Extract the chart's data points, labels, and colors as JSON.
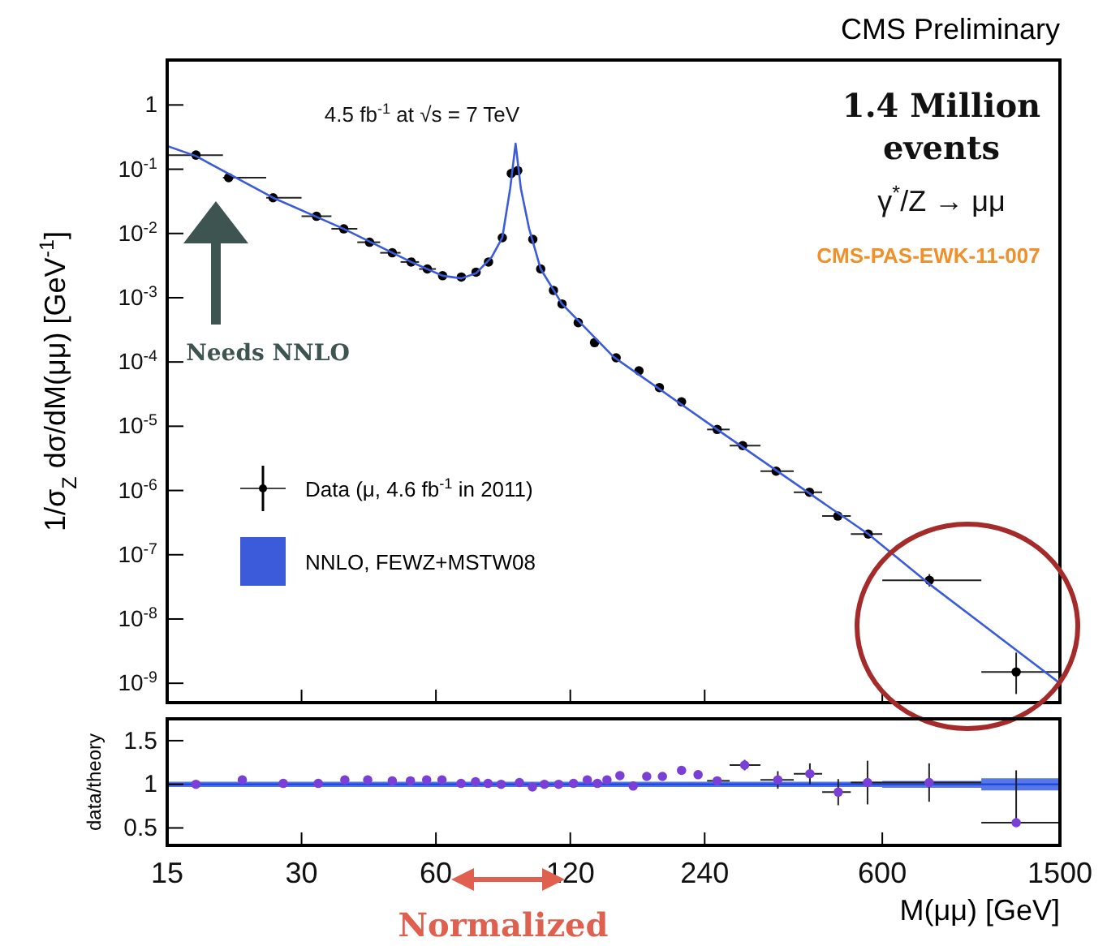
{
  "chart_data": [
    {
      "type": "line",
      "title": "CMS Preliminary",
      "ylabel": "1/σ$_{Z}$ dσ/dM(μμ) [GeV$^{-1}$]",
      "annotations": [
        "4.5 fb$^{-1}$ at √s = 7 TeV",
        "1.4 Million events",
        "γ$^{*}$/Z → μμ",
        "CMS-PAS-EWK-11-007",
        "Needs NNLO"
      ],
      "log": "xy",
      "xlim": [
        15,
        1500
      ],
      "xticks": [
        15,
        30,
        60,
        120,
        240,
        600,
        1500
      ],
      "ylim": [
        5e-10,
        5
      ],
      "yticks": [
        {
          "value": 1e-09,
          "label": "10$^{-9}$"
        },
        {
          "value": 1e-08,
          "label": "10$^{-8}$"
        },
        {
          "value": 1e-07,
          "label": "10$^{-7}$"
        },
        {
          "value": 1e-06,
          "label": "10$^{-6}$"
        },
        {
          "value": 1e-05,
          "label": "10$^{-5}$"
        },
        {
          "value": 0.0001,
          "label": "10$^{-4}$"
        },
        {
          "value": 0.001,
          "label": "10$^{-3}$"
        },
        {
          "value": 0.01,
          "label": "10$^{-2}$"
        },
        {
          "value": 0.1,
          "label": "10$^{-1}$"
        },
        1
      ],
      "tick_labels": "y",
      "legend": "bottom left",
      "series": [
        {
          "name": "Data (μ, 4.6 fb$^{-1}$ in 2011)",
          "type": "scatter",
          "marker": "circle",
          "color": "#000000",
          "x": [
            17.4,
            20.6,
            25.9,
            32.4,
            37.3,
            42.6,
            47.9,
            52.8,
            57.4,
            62.1,
            68.4,
            73.8,
            78.7,
            84.5,
            88.5,
            91.5,
            98.9,
            103,
            110,
            115,
            125,
            136,
            152,
            171,
            190,
            213,
            256,
            292,
            347,
            412,
            477,
            558,
            765,
            1197
          ],
          "values": [
            0.166,
            0.074,
            0.036,
            0.0185,
            0.0118,
            0.0073,
            0.005,
            0.0036,
            0.0028,
            0.0022,
            0.0021,
            0.0025,
            0.0036,
            0.0086,
            0.086,
            0.095,
            0.0081,
            0.0028,
            0.0013,
            0.0008,
            0.00041,
            0.0002,
            0.000116,
            7.3e-05,
            4e-05,
            2.4e-05,
            8.9e-06,
            5e-06,
            2e-06,
            9.4e-07,
            4e-07,
            2.1e-07,
            4e-08,
            1.5e-09
          ],
          "xerrors": [
            [
              15,
              20
            ],
            [
              20,
              25
            ],
            [
              25,
              30
            ],
            [
              30,
              35
            ],
            [
              35,
              40
            ],
            [
              40,
              45
            ],
            [
              45,
              50
            ],
            [
              50,
              55
            ],
            [
              55,
              60
            ],
            null,
            null,
            null,
            null,
            null,
            null,
            null,
            null,
            null,
            null,
            null,
            null,
            null,
            null,
            null,
            null,
            null,
            [
              243,
              273
            ],
            [
              273,
              320
            ],
            [
              320,
              380
            ],
            [
              380,
              440
            ],
            [
              440,
              510
            ],
            [
              510,
              600
            ],
            [
              600,
              1000
            ],
            [
              1000,
              1500
            ]
          ],
          "errors": [
            null,
            null,
            null,
            null,
            null,
            null,
            null,
            null,
            null,
            null,
            null,
            null,
            null,
            null,
            null,
            null,
            null,
            null,
            null,
            null,
            null,
            null,
            null,
            null,
            null,
            null,
            null,
            null,
            null,
            null,
            null,
            null,
            [
              3.2e-08,
              5e-08
            ],
            [
              6.8e-10,
              3e-09
            ]
          ]
        },
        {
          "name": "NNLO, FEWZ+MSTW08",
          "color": "#3b5bdb",
          "x": [
            15,
            17.4,
            25.9,
            37.3,
            52.8,
            62.1,
            68.4,
            73.8,
            80,
            84.5,
            88,
            90.5,
            93,
            97,
            103,
            115,
            150,
            256,
            558,
            765,
            1500
          ],
          "values": [
            0.23,
            0.16,
            0.036,
            0.0118,
            0.0036,
            0.0022,
            0.002,
            0.0024,
            0.0043,
            0.0086,
            0.05,
            0.25,
            0.05,
            0.012,
            0.0028,
            0.0008,
            0.00012,
            8.9e-06,
            2.1e-07,
            3.5e-08,
            1e-09
          ]
        }
      ]
    },
    {
      "type": "scatter",
      "xlabel": "M(μμ)  [GeV]",
      "ylabel": "data/theory",
      "annotations": [
        "Normalized"
      ],
      "log": "x",
      "xlim": [
        15,
        1500
      ],
      "xticks": [
        15,
        30,
        60,
        120,
        240,
        600,
        1500
      ],
      "ylim": [
        0.3,
        1.75
      ],
      "yticks": [
        0.5,
        1,
        1.5
      ],
      "series": [
        {
          "type": "line",
          "color": "#1f4ae0",
          "x": [
            15,
            600,
            1000,
            1500
          ],
          "values": [
            1,
            1,
            1,
            1
          ],
          "lower": [
            0.97,
            0.96,
            0.93,
            0.9
          ],
          "upper": [
            1.03,
            1.04,
            1.07,
            1.1
          ]
        },
        {
          "marker": "circle",
          "color": "#7a3fd6",
          "x": [
            17.4,
            22.1,
            27.3,
            32.7,
            37.5,
            42.2,
            47.9,
            52.6,
            57.2,
            61.9,
            68.3,
            73.6,
            78.5,
            84,
            92.3,
            98.7,
            105,
            113,
            122,
            131,
            138,
            145,
            155,
            166,
            178,
            193,
            213,
            232,
            256,
            295,
            350,
            413,
            478,
            556,
            764,
            1197
          ],
          "values": [
            1,
            1.05,
            1.01,
            1.01,
            1.05,
            1.05,
            1.04,
            1.04,
            1.05,
            1.05,
            1.01,
            1.03,
            1.01,
            1,
            1.02,
            0.97,
            1,
            1,
            1.01,
            1.05,
            1.01,
            1.05,
            1.1,
            0.98,
            1.09,
            1.09,
            1.16,
            1.11,
            1.04,
            1.22,
            1.05,
            1.12,
            0.91,
            1.02,
            1.02,
            0.56
          ],
          "errors": [
            null,
            null,
            null,
            null,
            null,
            null,
            null,
            null,
            null,
            null,
            null,
            null,
            null,
            null,
            null,
            null,
            null,
            null,
            null,
            null,
            null,
            null,
            null,
            null,
            null,
            null,
            null,
            null,
            null,
            0.06,
            0.1,
            0.12,
            0.15,
            0.25,
            0.22,
            [
              0.56,
              1.16
            ]
          ],
          "xerrors": [
            null,
            null,
            null,
            null,
            null,
            null,
            null,
            null,
            null,
            null,
            null,
            null,
            null,
            null,
            null,
            null,
            null,
            null,
            null,
            null,
            null,
            null,
            null,
            null,
            null,
            null,
            null,
            null,
            [
              243,
              273
            ],
            [
              273,
              320
            ],
            [
              320,
              380
            ],
            [
              380,
              440
            ],
            [
              440,
              510
            ],
            [
              510,
              600
            ],
            [
              600,
              1000
            ],
            [
              1000,
              1500
            ]
          ]
        }
      ]
    }
  ]
}
